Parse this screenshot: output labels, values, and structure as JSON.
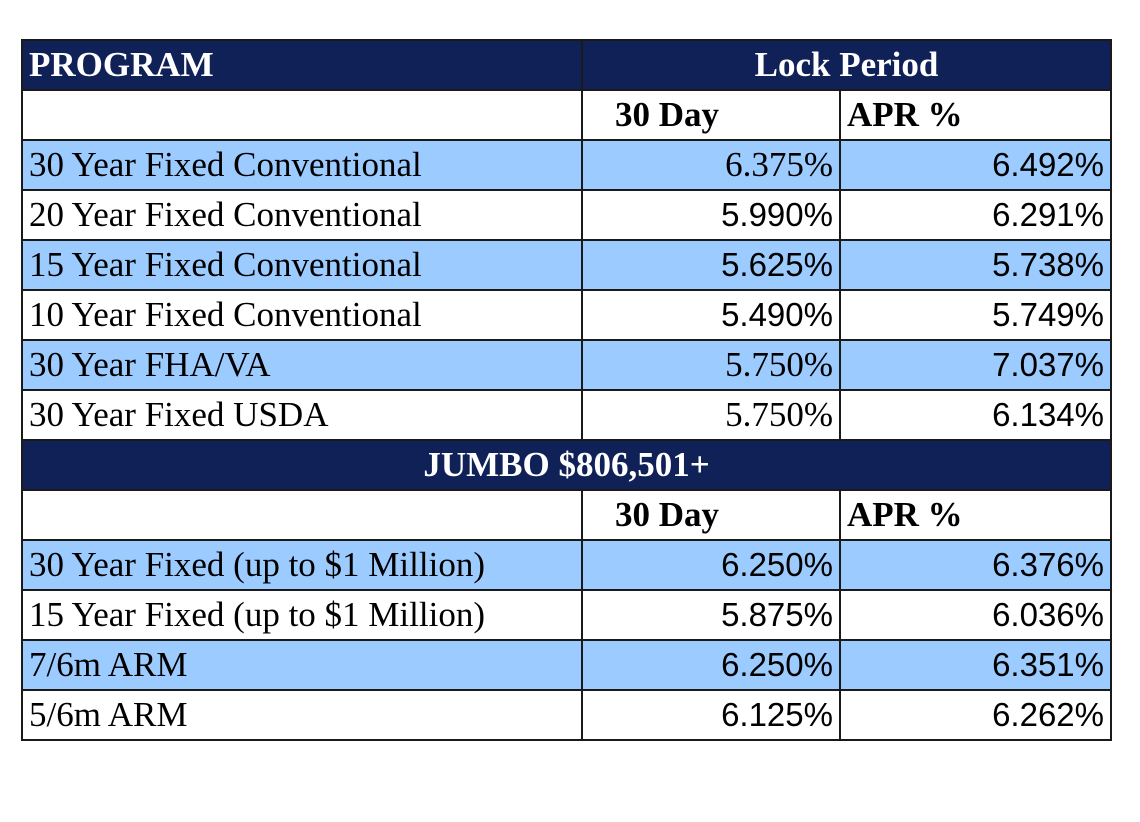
{
  "header": {
    "program_label": "PROGRAM",
    "lock_period_label": "Lock Period",
    "col_30day": "30 Day",
    "col_apr": "APR %"
  },
  "conventional_rows": [
    {
      "program": "30 Year Fixed Conventional",
      "rate_30day": "6.375%",
      "apr": "6.492%"
    },
    {
      "program": "20 Year Fixed Conventional",
      "rate_30day": "5.990%",
      "apr": "6.291%"
    },
    {
      "program": "15 Year Fixed Conventional",
      "rate_30day": "5.625%",
      "apr": "5.738%"
    },
    {
      "program": "10 Year Fixed Conventional",
      "rate_30day": "5.490%",
      "apr": "5.749%"
    },
    {
      "program": "30 Year FHA/VA",
      "rate_30day": "5.750%",
      "apr": "7.037%"
    },
    {
      "program": "30 Year Fixed USDA",
      "rate_30day": "5.750%",
      "apr": "6.134%"
    }
  ],
  "jumbo": {
    "title": "JUMBO $806,501+",
    "col_30day": "30 Day",
    "col_apr": "APR %",
    "rows": [
      {
        "program": "30 Year Fixed (up to $1 Million)",
        "rate_30day": "6.250%",
        "apr": "6.376%"
      },
      {
        "program": "15 Year Fixed (up to $1 Million)",
        "rate_30day": "5.875%",
        "apr": "6.036%"
      },
      {
        "program": "7/6m ARM",
        "rate_30day": "6.250%",
        "apr": "6.351%"
      },
      {
        "program": "5/6m ARM",
        "rate_30day": "6.125%",
        "apr": "6.262%"
      }
    ]
  },
  "colors": {
    "header_bg": "#0f2157",
    "shaded_row_bg": "#9ccbff"
  }
}
